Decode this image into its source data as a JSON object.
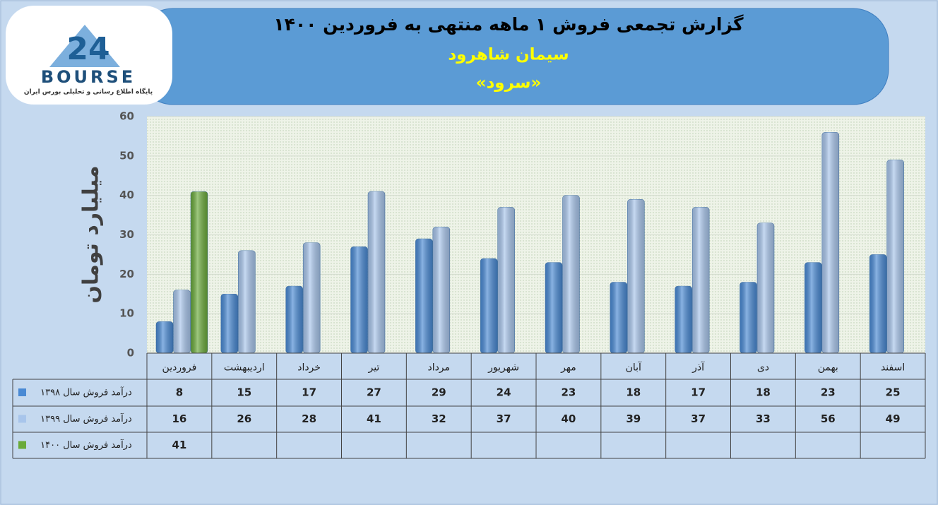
{
  "logo": {
    "mark": "24",
    "name": "BOURSE",
    "tagline": "پایگاه اطلاع رسانی و تحلیلی بورس ایران"
  },
  "chart_data": {
    "type": "bar",
    "title": "گزارش تجمعی فروش ۱ ماهه منتهی به فروردین ۱۴۰۰",
    "subtitle": "سیمان شاهرود",
    "subtitle2": "«سرود»",
    "y_label": "میلیارد تومان",
    "categories": [
      "فروردین",
      "اردیبهشت",
      "خرداد",
      "تیر",
      "مرداد",
      "شهریور",
      "مهر",
      "آبان",
      "آذر",
      "دی",
      "بهمن",
      "اسفند"
    ],
    "series": [
      {
        "name": "درآمد فروش سال ۱۳۹۸",
        "color": "#4a8ad4",
        "values": [
          8,
          15,
          17,
          27,
          29,
          24,
          23,
          18,
          17,
          18,
          23,
          25
        ]
      },
      {
        "name": "درآمد فروش سال ۱۳۹۹",
        "color": "#a8c5eb",
        "values": [
          16,
          26,
          28,
          41,
          32,
          37,
          40,
          39,
          37,
          33,
          56,
          49
        ]
      },
      {
        "name": "درآمد فروش سال ۱۴۰۰",
        "color": "#6aaa3a",
        "values": [
          41,
          null,
          null,
          null,
          null,
          null,
          null,
          null,
          null,
          null,
          null,
          null
        ]
      }
    ],
    "ylim": [
      0,
      60
    ],
    "yticks": [
      0,
      10,
      20,
      30,
      40,
      50,
      60
    ],
    "grid": true
  }
}
